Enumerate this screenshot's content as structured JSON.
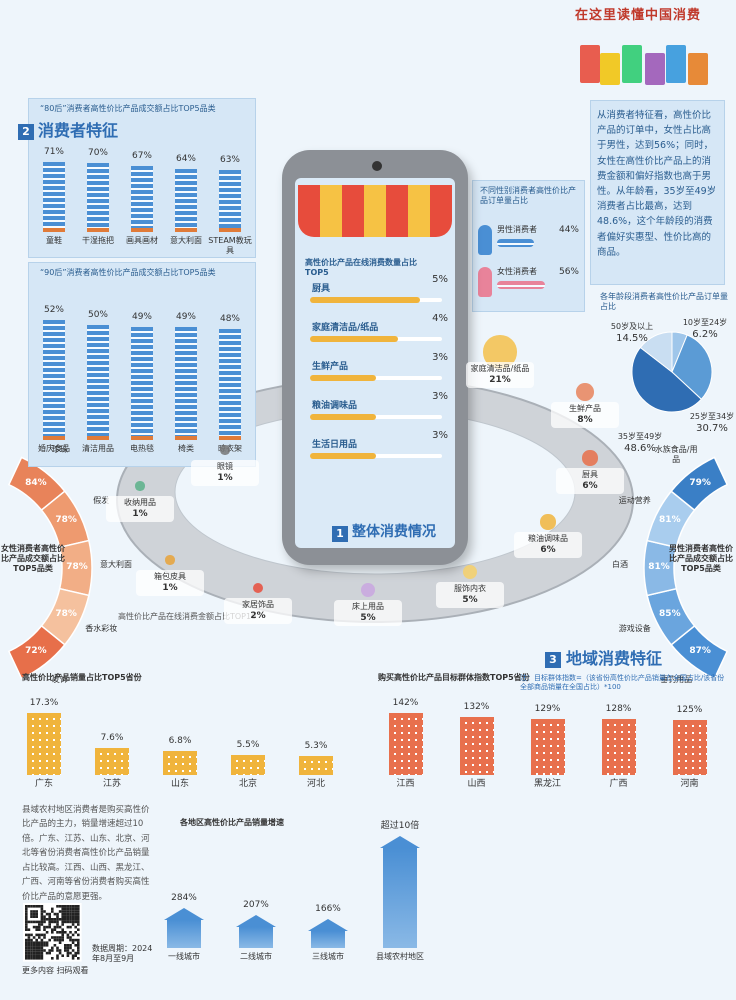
{
  "header": {
    "title": "在这里读懂中国消费"
  },
  "overall": {
    "number": "1",
    "title": "整体消费情况",
    "quantity": {
      "title": "高性价比产品在线消费数量占比TOP5",
      "categories": [
        "厨具",
        "家庭清洁品/纸品",
        "生鲜产品",
        "粮油调味品",
        "生活日用品"
      ],
      "values": [
        5,
        4,
        3,
        3,
        3
      ],
      "value_labels": [
        "5%",
        "4%",
        "3%",
        "3%",
        "3%"
      ]
    },
    "amount": {
      "title": "高性价比产品在线消费金额占比TOP10",
      "categories": [
        "家庭清洁品/纸品",
        "生鲜产品",
        "厨具",
        "粮油调味品",
        "服饰内衣",
        "床上用品",
        "家居饰品",
        "箱包皮具",
        "收纳用品",
        "眼镜"
      ],
      "values": [
        21,
        8,
        6,
        6,
        5,
        5,
        2,
        1,
        1,
        1
      ],
      "value_labels": [
        "21%",
        "8%",
        "6%",
        "6%",
        "5%",
        "5%",
        "2%",
        "1%",
        "1%",
        "1%"
      ]
    }
  },
  "consumer": {
    "number": "2",
    "title": "消费者特征",
    "post80": {
      "title": "“80后”消费者高性价比产品成交额占比TOP5品类",
      "categories": [
        "童鞋",
        "干湿拖把",
        "画具画材",
        "意大利面",
        "STEAM教玩具"
      ],
      "values": [
        71,
        70,
        67,
        64,
        63
      ],
      "value_labels": [
        "71%",
        "70%",
        "67%",
        "64%",
        "63%"
      ]
    },
    "post90": {
      "title": "“90后”消费者高性价比产品成交额占比TOP5品类",
      "categories": [
        "婚庆食品",
        "清洁用品",
        "电热毯",
        "椅类",
        "晾衣架"
      ],
      "values": [
        52,
        50,
        49,
        49,
        48
      ],
      "value_labels": [
        "52%",
        "50%",
        "49%",
        "49%",
        "48%"
      ]
    },
    "gender": {
      "title": "不同性别消费者高性价比产品订单量占比",
      "categories": [
        "男性消费者",
        "女性消费者"
      ],
      "values": [
        44,
        56
      ],
      "value_labels": [
        "44%",
        "56%"
      ]
    },
    "text": "从消费者特征看，高性价比产品的订单中，女性占比高于男性，达到56%；同时，女性在高性价比产品上的消费金额和偏好指数也高于男性。从年龄看，35岁至49岁消费者占比最高，达到48.6%，这个年龄段的消费者偏好实惠型、性价比高的商品。",
    "age": {
      "title": "各年龄段消费者高性价比产品订单量占比",
      "categories": [
        "10岁至24岁",
        "25岁至34岁",
        "35岁至49岁",
        "50岁及以上"
      ],
      "values": [
        6.2,
        30.7,
        48.6,
        14.5
      ],
      "value_labels": [
        "6.2%",
        "30.7%",
        "48.6%",
        "14.5%"
      ]
    },
    "female": {
      "title": "女性消费者高性价比产品成交额占比TOP5品类",
      "categories": [
        "珍珠",
        "假发",
        "意大利面",
        "香水彩妆",
        "发饰"
      ],
      "values": [
        84,
        78,
        78,
        78,
        72
      ],
      "value_labels": [
        "84%",
        "78%",
        "78%",
        "78%",
        "72%"
      ]
    },
    "male": {
      "title": "男性消费者高性价比产品成交额占比TOP5品类",
      "categories": [
        "垂钓用品",
        "游戏设备",
        "白酒",
        "运动营养",
        "水族食品/用品"
      ],
      "values": [
        87,
        85,
        81,
        81,
        79
      ],
      "value_labels": [
        "87%",
        "85%",
        "81%",
        "81%",
        "79%"
      ]
    }
  },
  "region": {
    "number": "3",
    "title": "地域消费特征",
    "share": {
      "title": "高性价比产品销量占比TOP5省份",
      "categories": [
        "广东",
        "江苏",
        "山东",
        "北京",
        "河北"
      ],
      "values": [
        17.3,
        7.6,
        6.8,
        5.5,
        5.3
      ],
      "value_labels": [
        "17.3%",
        "7.6%",
        "6.8%",
        "5.5%",
        "5.3%"
      ]
    },
    "index": {
      "title": "购买高性价比产品目标群体指数TOP5省份",
      "note": "注：目标群体指数=（该省份高性价比产品销量在全国占比/该省份全部商品销量在全国占比）*100",
      "categories": [
        "江西",
        "山西",
        "黑龙江",
        "广西",
        "河南"
      ],
      "values": [
        142,
        132,
        129,
        128,
        125
      ],
      "value_labels": [
        "142%",
        "132%",
        "129%",
        "128%",
        "125%"
      ]
    },
    "growth": {
      "title": "各地区高性价比产品销量增速",
      "categories": [
        "一线城市",
        "二线城市",
        "三线城市",
        "县域农村地区"
      ],
      "values": [
        284,
        207,
        166,
        1000
      ],
      "value_labels": [
        "284%",
        "207%",
        "166%",
        "超过10倍"
      ]
    },
    "text": "县域农村地区消费者是购买高性价比产品的主力，销量增速超过10倍。广东、江苏、山东、北京、河北等省份消费者高性价比产品销量占比较高。江西、山西、黑龙江、广西、河南等省份消费者购买高性价比产品的意愿更强。",
    "qr_caption": "更多内容 扫码观看",
    "period": "数据周期：2024年8月至9月"
  }
}
